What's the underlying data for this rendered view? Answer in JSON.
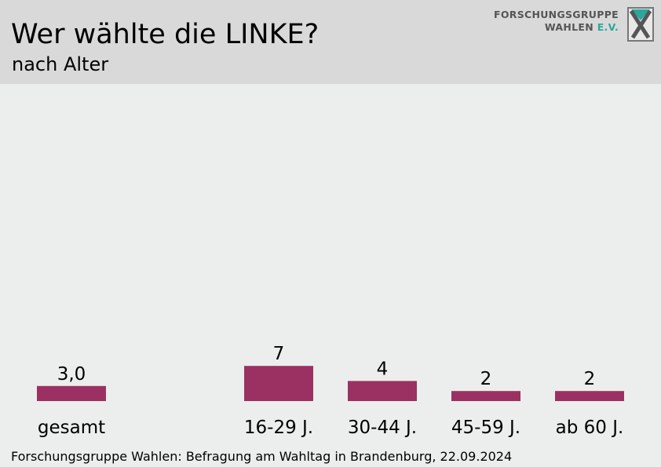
{
  "header": {
    "title": "Wer wählte die LINKE?",
    "subtitle": "nach Alter"
  },
  "logo": {
    "line1": "FORSCHUNGSGRUPPE",
    "line2_main": "WAHLEN",
    "line2_accent": "E.V.",
    "icon": "x-ballot-icon"
  },
  "colors": {
    "bar": "#9b3162",
    "background": "#ebeeec",
    "header": "#d9d9d9"
  },
  "chart_data": {
    "type": "bar",
    "categories": [
      "gesamt",
      "16-29 J.",
      "30-44 J.",
      "45-59 J.",
      "ab 60 J."
    ],
    "values": [
      3.0,
      7,
      4,
      2,
      2
    ],
    "value_labels": [
      "3,0",
      "7",
      "4",
      "2",
      "2"
    ],
    "ylim": [
      0,
      50
    ]
  },
  "footer": {
    "source": "Forschungsgruppe Wahlen: Befragung am Wahltag in Brandenburg, 22.09.2024"
  }
}
